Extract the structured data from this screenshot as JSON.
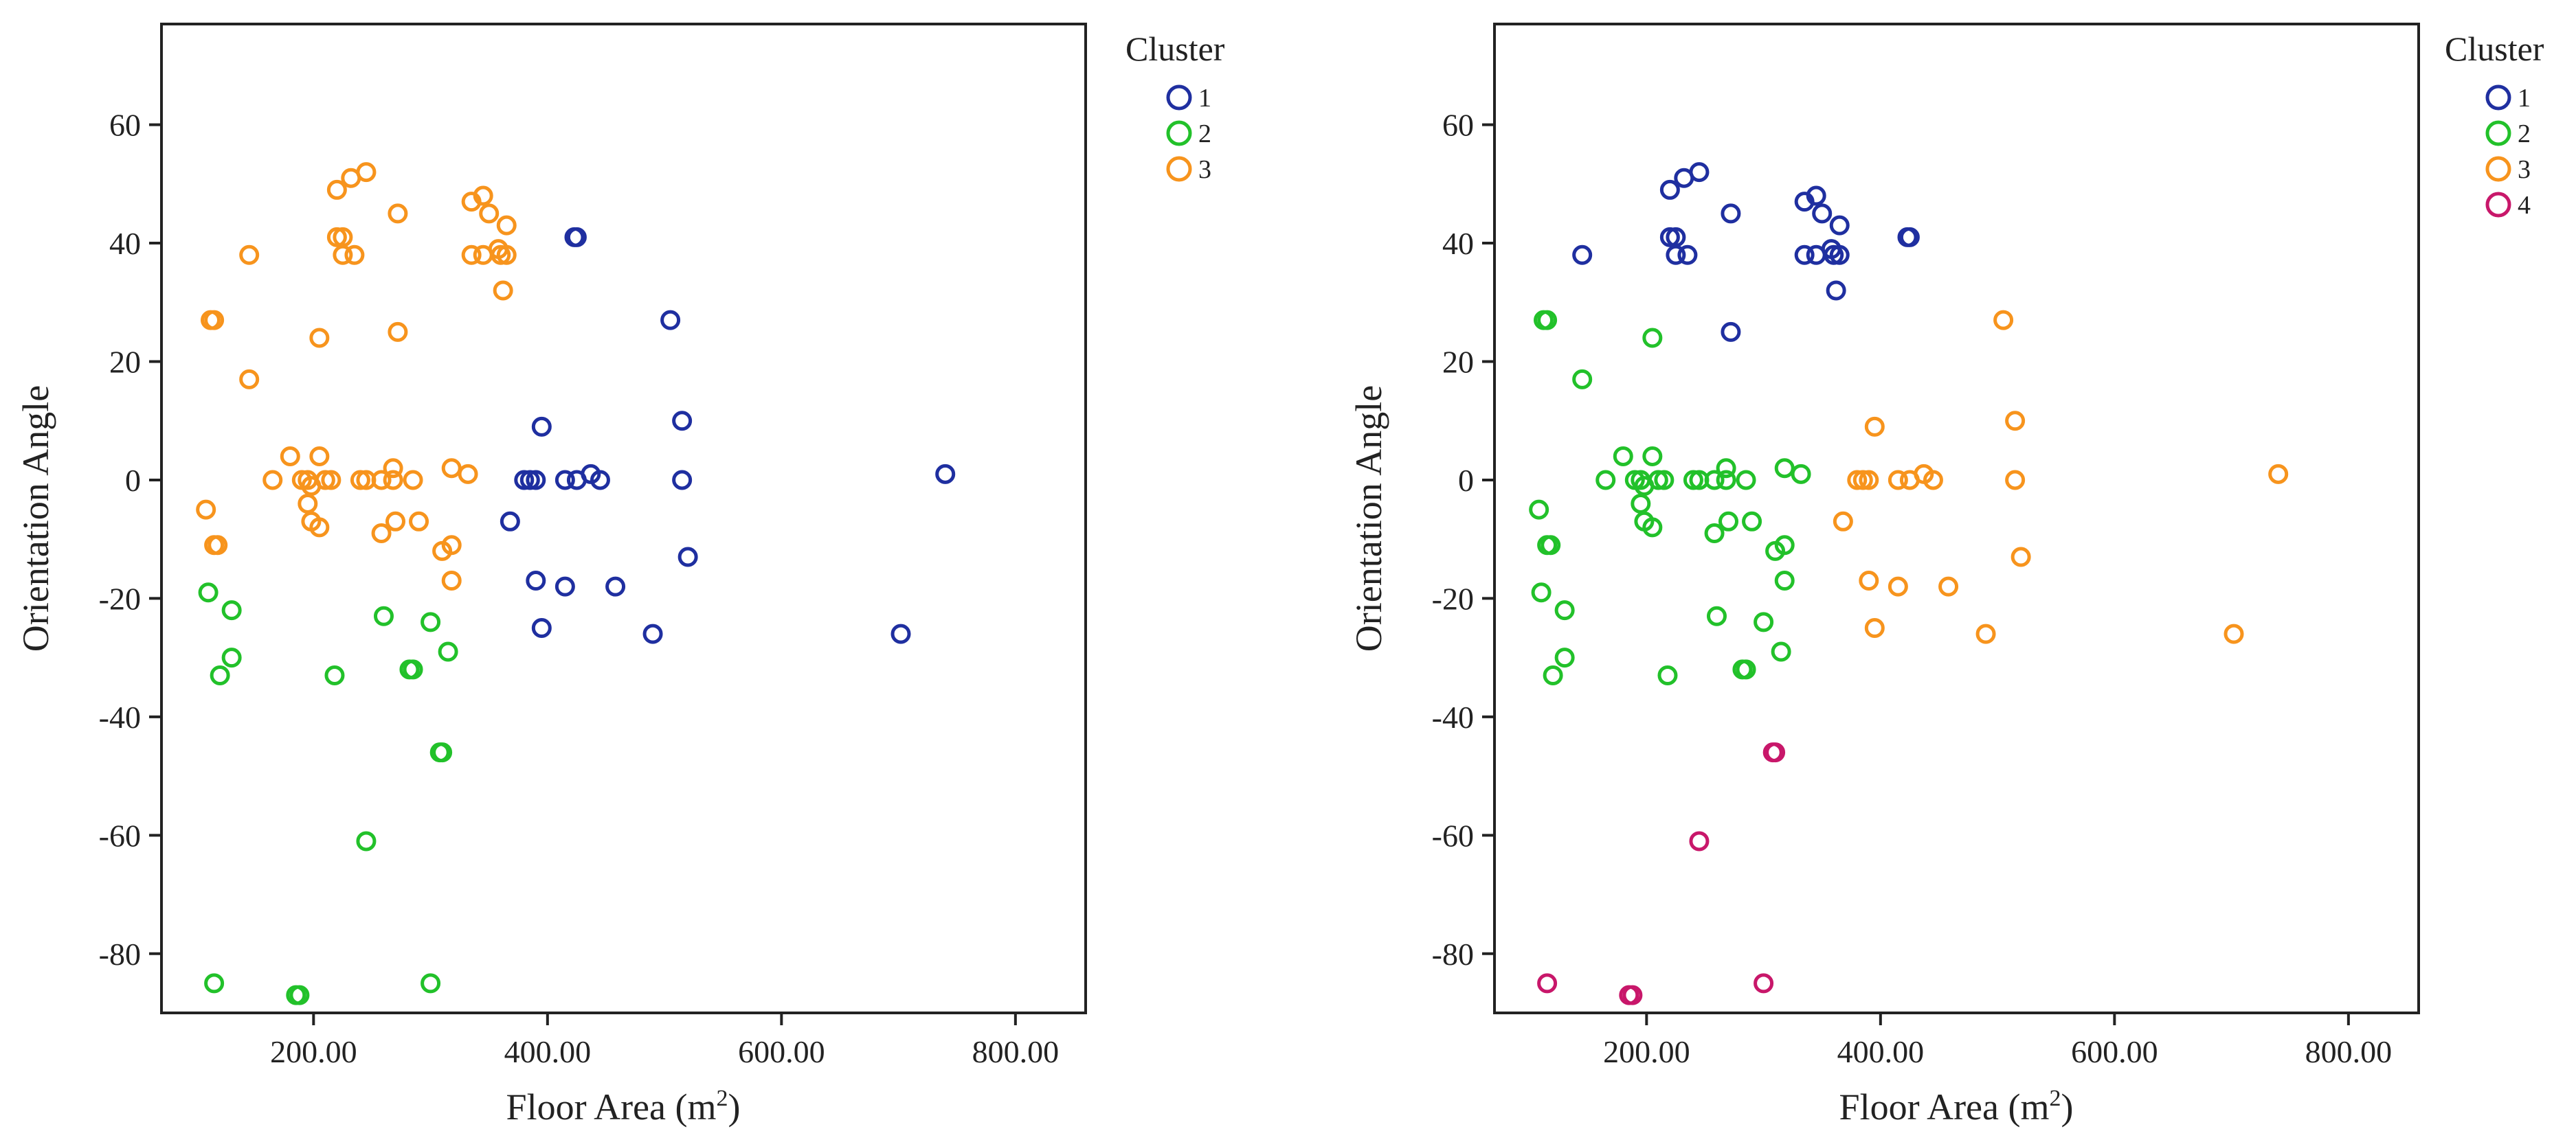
{
  "colors": {
    "c1": "#1f2fa0",
    "c2": "#22c12a",
    "c3": "#f7941d",
    "c4": "#c8176a"
  },
  "chart_data": [
    {
      "type": "scatter",
      "title": "",
      "xlabel": "Floor Area (m",
      "xlabel_sup": "2",
      "xlabel_end": ")",
      "ylabel": "Orientation Angle",
      "xlim": [
        70,
        860
      ],
      "ylim": [
        -90,
        77
      ],
      "x_ticks": [
        200,
        400,
        600,
        800
      ],
      "x_tick_labels": [
        "200.00",
        "400.00",
        "600.00",
        "800.00"
      ],
      "y_ticks": [
        -80,
        -60,
        -40,
        -20,
        0,
        20,
        40,
        60
      ],
      "y_tick_labels": [
        "-80",
        "-60",
        "-40",
        "-20",
        "0",
        "20",
        "40",
        "60"
      ],
      "legend": {
        "title": "Cluster",
        "position": "top-right-outside",
        "entries": [
          {
            "label": "1",
            "color": "#1f2fa0"
          },
          {
            "label": "2",
            "color": "#22c12a"
          },
          {
            "label": "3",
            "color": "#f7941d"
          }
        ]
      },
      "series": [
        {
          "name": "1",
          "color": "#1f2fa0",
          "points": [
            [
              423,
              41
            ],
            [
              425,
              41
            ],
            [
              505,
              27
            ],
            [
              515,
              10
            ],
            [
              395,
              9
            ],
            [
              740,
              1
            ],
            [
              380,
              0
            ],
            [
              385,
              0
            ],
            [
              390,
              0
            ],
            [
              415,
              0
            ],
            [
              425,
              0
            ],
            [
              437,
              1
            ],
            [
              445,
              0
            ],
            [
              515,
              0
            ],
            [
              368,
              -7
            ],
            [
              520,
              -13
            ],
            [
              390,
              -17
            ],
            [
              415,
              -18
            ],
            [
              458,
              -18
            ],
            [
              395,
              -25
            ],
            [
              490,
              -26
            ],
            [
              702,
              -26
            ]
          ]
        },
        {
          "name": "2",
          "color": "#22c12a",
          "points": [
            [
              110,
              -19
            ],
            [
              130,
              -22
            ],
            [
              130,
              -30
            ],
            [
              120,
              -33
            ],
            [
              218,
              -33
            ],
            [
              260,
              -23
            ],
            [
              300,
              -24
            ],
            [
              282,
              -32
            ],
            [
              285,
              -32
            ],
            [
              315,
              -29
            ],
            [
              308,
              -46
            ],
            [
              310,
              -46
            ],
            [
              245,
              -61
            ],
            [
              115,
              -85
            ],
            [
              185,
              -87
            ],
            [
              188,
              -87
            ],
            [
              300,
              -85
            ]
          ]
        },
        {
          "name": "3",
          "color": "#f7941d",
          "points": [
            [
              245,
              52
            ],
            [
              232,
              51
            ],
            [
              220,
              49
            ],
            [
              345,
              48
            ],
            [
              350,
              45
            ],
            [
              335,
              47
            ],
            [
              365,
              43
            ],
            [
              272,
              45
            ],
            [
              220,
              41
            ],
            [
              225,
              41
            ],
            [
              225,
              38
            ],
            [
              235,
              38
            ],
            [
              145,
              38
            ],
            [
              335,
              38
            ],
            [
              345,
              38
            ],
            [
              358,
              39
            ],
            [
              360,
              38
            ],
            [
              365,
              38
            ],
            [
              362,
              32
            ],
            [
              112,
              27
            ],
            [
              115,
              27
            ],
            [
              272,
              25
            ],
            [
              205,
              24
            ],
            [
              145,
              17
            ],
            [
              180,
              4
            ],
            [
              205,
              4
            ],
            [
              268,
              2
            ],
            [
              318,
              2
            ],
            [
              332,
              1
            ],
            [
              165,
              0
            ],
            [
              190,
              0
            ],
            [
              195,
              0
            ],
            [
              210,
              0
            ],
            [
              215,
              0
            ],
            [
              240,
              0
            ],
            [
              245,
              0
            ],
            [
              258,
              0
            ],
            [
              268,
              0
            ],
            [
              285,
              0
            ],
            [
              198,
              -1
            ],
            [
              195,
              -4
            ],
            [
              108,
              -5
            ],
            [
              198,
              -7
            ],
            [
              205,
              -8
            ],
            [
              270,
              -7
            ],
            [
              290,
              -7
            ],
            [
              258,
              -9
            ],
            [
              115,
              -11
            ],
            [
              118,
              -11
            ],
            [
              318,
              -11
            ],
            [
              310,
              -12
            ],
            [
              318,
              -17
            ]
          ]
        }
      ]
    },
    {
      "type": "scatter",
      "title": "",
      "xlabel": "Floor Area (m",
      "xlabel_sup": "2",
      "xlabel_end": ")",
      "ylabel": "Orientation Angle",
      "xlim": [
        70,
        860
      ],
      "ylim": [
        -90,
        77
      ],
      "x_ticks": [
        200,
        400,
        600,
        800
      ],
      "x_tick_labels": [
        "200.00",
        "400.00",
        "600.00",
        "800.00"
      ],
      "y_ticks": [
        -80,
        -60,
        -40,
        -20,
        0,
        20,
        40,
        60
      ],
      "y_tick_labels": [
        "-80",
        "-60",
        "-40",
        "-20",
        "0",
        "20",
        "40",
        "60"
      ],
      "legend": {
        "title": "Cluster",
        "position": "top-right-outside",
        "entries": [
          {
            "label": "1",
            "color": "#1f2fa0"
          },
          {
            "label": "2",
            "color": "#22c12a"
          },
          {
            "label": "3",
            "color": "#f7941d"
          },
          {
            "label": "4",
            "color": "#c8176a"
          }
        ]
      },
      "series": [
        {
          "name": "1",
          "color": "#1f2fa0",
          "points": [
            [
              245,
              52
            ],
            [
              232,
              51
            ],
            [
              220,
              49
            ],
            [
              345,
              48
            ],
            [
              350,
              45
            ],
            [
              335,
              47
            ],
            [
              365,
              43
            ],
            [
              272,
              45
            ],
            [
              220,
              41
            ],
            [
              225,
              41
            ],
            [
              225,
              38
            ],
            [
              235,
              38
            ],
            [
              145,
              38
            ],
            [
              335,
              38
            ],
            [
              345,
              38
            ],
            [
              358,
              39
            ],
            [
              360,
              38
            ],
            [
              365,
              38
            ],
            [
              362,
              32
            ],
            [
              423,
              41
            ],
            [
              425,
              41
            ],
            [
              272,
              25
            ]
          ]
        },
        {
          "name": "2",
          "color": "#22c12a",
          "points": [
            [
              112,
              27
            ],
            [
              115,
              27
            ],
            [
              205,
              24
            ],
            [
              145,
              17
            ],
            [
              180,
              4
            ],
            [
              205,
              4
            ],
            [
              268,
              2
            ],
            [
              318,
              2
            ],
            [
              332,
              1
            ],
            [
              165,
              0
            ],
            [
              190,
              0
            ],
            [
              195,
              0
            ],
            [
              210,
              0
            ],
            [
              215,
              0
            ],
            [
              240,
              0
            ],
            [
              245,
              0
            ],
            [
              258,
              0
            ],
            [
              268,
              0
            ],
            [
              285,
              0
            ],
            [
              198,
              -1
            ],
            [
              195,
              -4
            ],
            [
              108,
              -5
            ],
            [
              198,
              -7
            ],
            [
              205,
              -8
            ],
            [
              270,
              -7
            ],
            [
              290,
              -7
            ],
            [
              258,
              -9
            ],
            [
              115,
              -11
            ],
            [
              118,
              -11
            ],
            [
              318,
              -11
            ],
            [
              310,
              -12
            ],
            [
              318,
              -17
            ],
            [
              110,
              -19
            ],
            [
              130,
              -22
            ],
            [
              130,
              -30
            ],
            [
              120,
              -33
            ],
            [
              218,
              -33
            ],
            [
              260,
              -23
            ],
            [
              300,
              -24
            ],
            [
              282,
              -32
            ],
            [
              285,
              -32
            ],
            [
              315,
              -29
            ]
          ]
        },
        {
          "name": "3",
          "color": "#f7941d",
          "points": [
            [
              505,
              27
            ],
            [
              515,
              10
            ],
            [
              395,
              9
            ],
            [
              740,
              1
            ],
            [
              380,
              0
            ],
            [
              385,
              0
            ],
            [
              390,
              0
            ],
            [
              415,
              0
            ],
            [
              425,
              0
            ],
            [
              437,
              1
            ],
            [
              445,
              0
            ],
            [
              515,
              0
            ],
            [
              368,
              -7
            ],
            [
              520,
              -13
            ],
            [
              390,
              -17
            ],
            [
              415,
              -18
            ],
            [
              458,
              -18
            ],
            [
              395,
              -25
            ],
            [
              490,
              -26
            ],
            [
              702,
              -26
            ]
          ]
        },
        {
          "name": "4",
          "color": "#c8176a",
          "points": [
            [
              308,
              -46
            ],
            [
              310,
              -46
            ],
            [
              245,
              -61
            ],
            [
              115,
              -85
            ],
            [
              185,
              -87
            ],
            [
              188,
              -87
            ],
            [
              300,
              -85
            ]
          ]
        }
      ]
    }
  ]
}
